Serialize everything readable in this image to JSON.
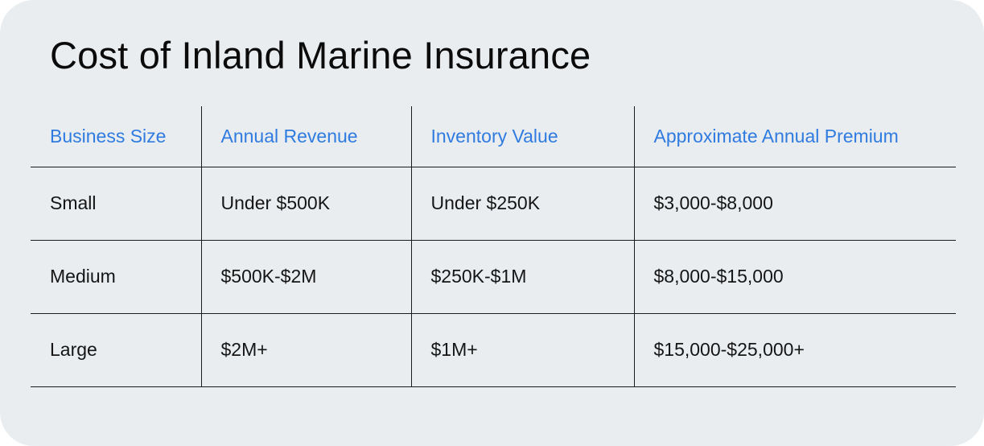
{
  "page": {
    "title": "Cost of Inland Marine Insurance"
  },
  "table": {
    "headers": [
      "Business Size",
      "Annual Revenue",
      "Inventory Value",
      "Approximate Annual Premium"
    ],
    "rows": [
      [
        "Small",
        "Under $500K",
        "Under $250K",
        "$3,000-$8,000"
      ],
      [
        "Medium",
        "$500K-$2M",
        "$250K-$1M",
        "$8,000-$15,000"
      ],
      [
        "Large",
        "$2M+",
        "$1M+",
        "$15,000-$25,000+"
      ]
    ]
  },
  "colors": {
    "background": "#e9edf0",
    "header_text": "#2f7be0",
    "body_text": "#151515",
    "rule": "#1b1b1b"
  }
}
